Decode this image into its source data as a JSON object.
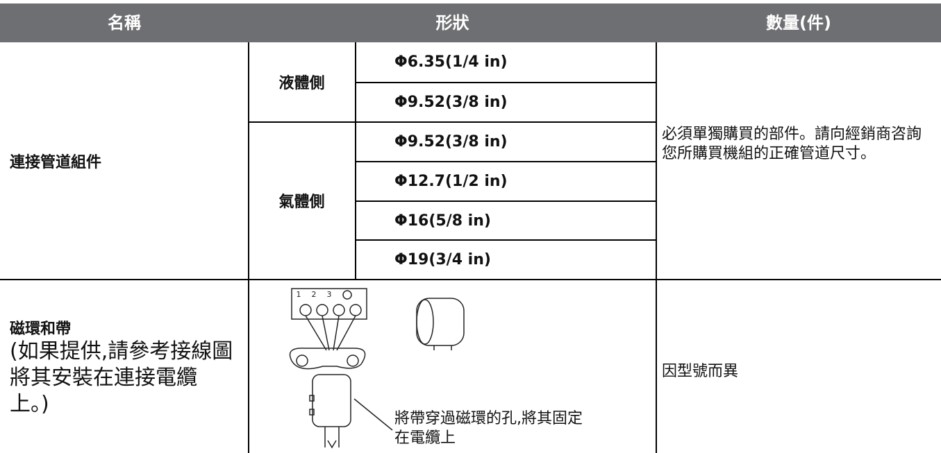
{
  "header": {
    "columns": [
      "名稱",
      "形狀",
      "數量(件)"
    ]
  },
  "table": {
    "rows": [
      {
        "name": "連接管道組件",
        "groups": [
          {
            "side": "液體側",
            "sizes": [
              "Φ6.35(1/4 in)",
              "Φ9.52(3/8 in)"
            ]
          },
          {
            "side": "氣體側",
            "sizes": [
              "Φ9.52(3/8 in)",
              "Φ12.7(1/2 in)",
              "Φ16(5/8 in)",
              "Φ19(3/4 in)"
            ]
          }
        ],
        "quantity": "必須單獨購買的部件。請向經銷商咨詢您所購買機組的正確管道尺寸。"
      },
      {
        "name": "磁環和帶",
        "note": "(如果提供,請參考接線圖將其安裝在連接電纜上。)",
        "figure": {
          "terminals": [
            "1",
            "2",
            "3"
          ],
          "caption": "將帶穿過磁環的孔,將其固定在電纜上"
        },
        "quantity": "因型號而異"
      }
    ]
  }
}
